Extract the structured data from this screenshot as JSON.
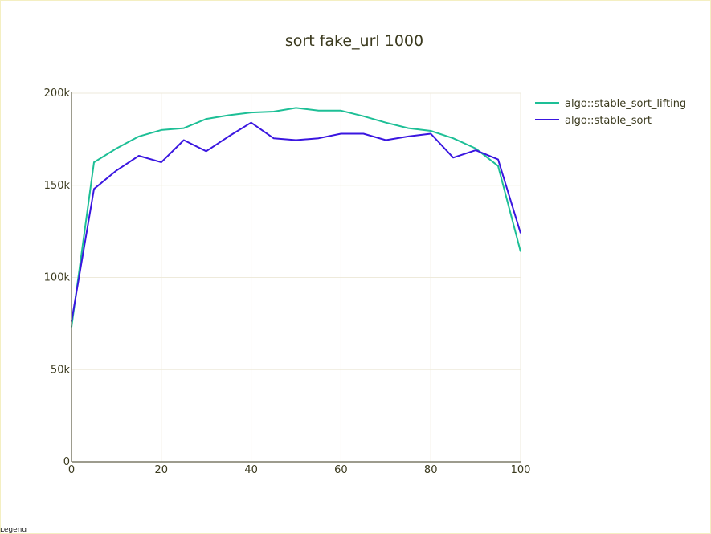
{
  "chart_data": {
    "type": "line",
    "title": "sort fake_url 1000",
    "xlabel": "",
    "ylabel": "",
    "xlim": [
      0,
      100
    ],
    "ylim": [
      0,
      200000
    ],
    "xticks": [
      0,
      20,
      40,
      60,
      80,
      100
    ],
    "xtick_labels": [
      "0",
      "20",
      "40",
      "60",
      "80",
      "100"
    ],
    "yticks": [
      0,
      50000,
      100000,
      150000,
      200000
    ],
    "ytick_labels": [
      "0",
      "50k",
      "100k",
      "150k",
      "200k"
    ],
    "grid": true,
    "legend_position": "top-right",
    "x": [
      0,
      5,
      10,
      15,
      20,
      25,
      30,
      35,
      40,
      45,
      50,
      55,
      60,
      65,
      70,
      75,
      80,
      85,
      90,
      95,
      100
    ],
    "series": [
      {
        "name": "algo::stable_sort_lifting",
        "color": "#1dbf96",
        "values": [
          73000,
          162500,
          170000,
          176500,
          180000,
          181000,
          186000,
          188000,
          189500,
          190000,
          192000,
          190500,
          190500,
          187500,
          184000,
          181000,
          179500,
          175500,
          170000,
          160500,
          114000
        ]
      },
      {
        "name": "algo::stable_sort",
        "color": "#3a16e0",
        "values": [
          76000,
          148000,
          158000,
          166000,
          162500,
          174500,
          168500,
          176500,
          184000,
          175500,
          174500,
          175500,
          178000,
          178000,
          174500,
          176500,
          178000,
          165000,
          169000,
          164000,
          124000
        ]
      }
    ]
  },
  "bottom_fragment": "Legend"
}
